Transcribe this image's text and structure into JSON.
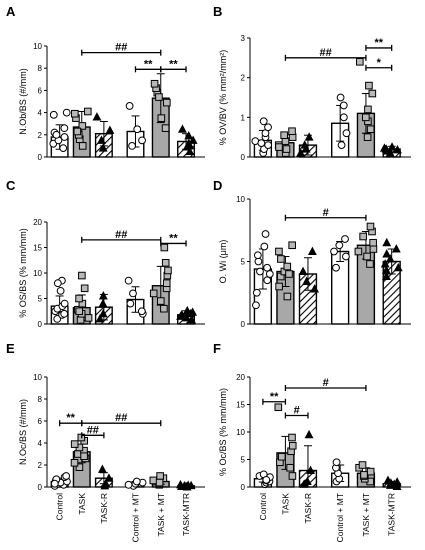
{
  "chart_data": [
    {
      "panel": "A",
      "type": "bar",
      "ylabel": "N.Ob/BS (#/mm)",
      "ylim": [
        0,
        10
      ],
      "yticks": [
        0,
        2,
        4,
        6,
        8,
        10
      ],
      "categories": [
        "Control",
        "TASK",
        "TASK-R",
        "Control + MT",
        "TASK + MT",
        "TASK-MTR"
      ],
      "values": [
        1.8,
        2.7,
        2.1,
        2.3,
        5.3,
        1.4
      ],
      "errors": [
        1.1,
        1.4,
        1.1,
        1.4,
        2.2,
        0.7
      ],
      "points": [
        [
          0.8,
          1.2,
          1.5,
          1.8,
          2.2,
          2.6,
          3.8,
          4.0,
          2.0
        ],
        [
          1.0,
          1.6,
          2.0,
          2.8,
          3.5,
          3.9,
          4.1,
          2.3
        ],
        [
          0.8,
          1.5,
          2.4,
          3.6
        ],
        [
          1.0,
          1.5,
          2.5,
          4.6
        ],
        [
          2.6,
          3.5,
          4.9,
          5.8,
          6.2,
          6.6,
          5.4
        ],
        [
          0.5,
          0.9,
          1.2,
          1.5,
          1.9,
          2.5,
          1.0
        ]
      ],
      "significance": [
        {
          "from": 1,
          "to": 4,
          "y": 9.4,
          "label": "##"
        },
        {
          "from": 3,
          "to": 4,
          "y": 7.9,
          "label": "**"
        },
        {
          "from": 4,
          "to": 5,
          "y": 7.9,
          "label": "**"
        }
      ]
    },
    {
      "panel": "B",
      "type": "bar",
      "ylabel": "% OV/BV (% mm²/mm²)",
      "ylim": [
        0,
        3
      ],
      "yticks": [
        0,
        1,
        2,
        3
      ],
      "categories": [
        "Control",
        "TASK",
        "TASK-R",
        "Control + MT",
        "TASK + MT",
        "TASK-MTR"
      ],
      "values": [
        0.42,
        0.36,
        0.3,
        0.85,
        1.1,
        0.2
      ],
      "errors": [
        0.25,
        0.2,
        0.25,
        0.45,
        0.5,
        0.07
      ],
      "points": [
        [
          0.1,
          0.2,
          0.3,
          0.4,
          0.5,
          0.6,
          0.75,
          0.9,
          0.35
        ],
        [
          0.1,
          0.2,
          0.3,
          0.4,
          0.5,
          0.55,
          0.65,
          0.25
        ],
        [
          0.1,
          0.2,
          0.3,
          0.5
        ],
        [
          0.3,
          0.6,
          1.0,
          1.3,
          1.5
        ],
        [
          0.5,
          0.7,
          0.9,
          1.2,
          1.6,
          1.8,
          2.4,
          1.0
        ],
        [
          0.1,
          0.15,
          0.2,
          0.22,
          0.25,
          0.18
        ]
      ],
      "significance": [
        {
          "from": 1,
          "to": 4,
          "y": 2.5,
          "label": "##"
        },
        {
          "from": 4,
          "to": 5,
          "y": 2.75,
          "label": "**"
        },
        {
          "from": 4,
          "to": 5,
          "y": 2.25,
          "label": "*"
        }
      ]
    },
    {
      "panel": "C",
      "type": "bar",
      "ylabel": "% OS/BS (% mm/mm)",
      "ylim": [
        0,
        20
      ],
      "yticks": [
        0,
        5,
        10,
        15,
        20
      ],
      "categories": [
        "Control",
        "TASK",
        "TASK-R",
        "Control + MT",
        "TASK + MT",
        "TASK-MTR"
      ],
      "values": [
        3.5,
        3.2,
        3.3,
        4.8,
        7.5,
        1.8
      ],
      "errors": [
        2.0,
        2.5,
        2.5,
        2.5,
        3.8,
        0.8
      ],
      "points": [
        [
          1.0,
          1.8,
          2.5,
          3.0,
          3.5,
          4.0,
          6.5,
          8.5,
          8.0,
          2.0
        ],
        [
          0.8,
          1.2,
          2.0,
          2.8,
          4.0,
          5.0,
          7.0,
          9.5,
          2.5
        ],
        [
          1.0,
          2.0,
          4.0,
          5.5
        ],
        [
          2.0,
          2.5,
          4.0,
          6.0,
          8.5
        ],
        [
          3.0,
          4.5,
          6.0,
          7.0,
          8.0,
          9.5,
          10.5,
          12.0,
          15.0
        ],
        [
          0.8,
          1.2,
          1.5,
          2.0,
          2.3,
          2.6,
          1.8
        ]
      ],
      "significance": [
        {
          "from": 1,
          "to": 4,
          "y": 16.5,
          "label": "##"
        },
        {
          "from": 4,
          "to": 5,
          "y": 15.8,
          "label": "**"
        }
      ]
    },
    {
      "panel": "D",
      "type": "bar",
      "ylabel": "O. Wi (μm)",
      "ylim": [
        0,
        10
      ],
      "yticks": [
        0,
        5,
        10
      ],
      "categories": [
        "Control",
        "TASK",
        "TASK-R",
        "Control + MT",
        "TASK + MT",
        "TASK-MTR"
      ],
      "values": [
        4.4,
        4.2,
        4.0,
        5.8,
        6.3,
        5.0
      ],
      "errors": [
        1.6,
        1.2,
        1.3,
        0.8,
        1.1,
        1.0
      ],
      "points": [
        [
          1.5,
          2.5,
          3.5,
          4.0,
          4.5,
          5.0,
          5.5,
          6.2,
          7.2,
          4.2
        ],
        [
          2.2,
          3.0,
          3.8,
          4.2,
          4.6,
          5.2,
          5.8,
          6.3,
          4.0
        ],
        [
          2.8,
          3.4,
          4.2,
          5.8
        ],
        [
          4.5,
          5.4,
          5.8,
          6.3,
          6.8
        ],
        [
          4.8,
          5.4,
          6.0,
          6.5,
          7.0,
          7.4,
          7.8,
          5.8
        ],
        [
          3.8,
          4.3,
          4.8,
          5.2,
          5.6,
          6.0,
          6.5,
          4.5
        ]
      ],
      "significance": [
        {
          "from": 1,
          "to": 4,
          "y": 8.5,
          "label": "#"
        }
      ]
    },
    {
      "panel": "E",
      "type": "bar",
      "ylabel": "N.Oc/BS (#/mm)",
      "ylim": [
        0,
        10
      ],
      "yticks": [
        0,
        2,
        4,
        6,
        8,
        10
      ],
      "categories": [
        "Control",
        "TASK",
        "TASK-R",
        "Control + MT",
        "TASK + MT",
        "TASK-MTR"
      ],
      "values": [
        0.5,
        3.2,
        0.8,
        0.3,
        0.5,
        0.1
      ],
      "errors": [
        0.3,
        1.0,
        0.5,
        0.2,
        0.25,
        0.08
      ],
      "points": [
        [
          0.1,
          0.2,
          0.3,
          0.4,
          0.5,
          0.6,
          0.7,
          0.9,
          1.0,
          0.3
        ],
        [
          1.8,
          2.2,
          2.6,
          3.0,
          3.3,
          3.6,
          3.9,
          4.2,
          4.5,
          2.8
        ],
        [
          0.1,
          0.3,
          0.8,
          1.6
        ],
        [
          0.1,
          0.2,
          0.3,
          0.4,
          0.5
        ],
        [
          0.2,
          0.3,
          0.5,
          0.6,
          0.8,
          1.0,
          0.4
        ],
        [
          0.0,
          0.05,
          0.1,
          0.12,
          0.15,
          0.2,
          0.05
        ]
      ],
      "significance": [
        {
          "from": 0,
          "to": 1,
          "y": 5.8,
          "label": "**"
        },
        {
          "from": 1,
          "to": 4,
          "y": 5.8,
          "label": "##"
        },
        {
          "from": 1,
          "to": 2,
          "y": 4.7,
          "label": "##"
        }
      ]
    },
    {
      "panel": "F",
      "type": "bar",
      "ylabel": "% Oc/BS (% mm/mm)",
      "ylim": [
        0,
        20
      ],
      "yticks": [
        0,
        5,
        10,
        15,
        20
      ],
      "categories": [
        "Control",
        "TASK",
        "TASK-R",
        "Control + MT",
        "TASK + MT",
        "TASK-MTR"
      ],
      "values": [
        1.5,
        6.2,
        3.0,
        2.5,
        2.5,
        0.6
      ],
      "errors": [
        0.6,
        3.0,
        4.5,
        1.5,
        1.0,
        0.4
      ],
      "points": [
        [
          0.5,
          0.8,
          1.0,
          1.2,
          1.5,
          1.8,
          2.0,
          2.3,
          1.3
        ],
        [
          2.0,
          3.5,
          4.5,
          5.5,
          6.5,
          7.5,
          9.0,
          14.5
        ],
        [
          0.5,
          1.0,
          3.0,
          9.5
        ],
        [
          1.0,
          1.5,
          2.5,
          3.5,
          4.5
        ],
        [
          1.0,
          1.5,
          2.0,
          2.8,
          3.5,
          4.0,
          2.2
        ],
        [
          0.1,
          0.3,
          0.5,
          0.7,
          0.9,
          1.2,
          0.4
        ]
      ],
      "significance": [
        {
          "from": 0,
          "to": 1,
          "y": 15.5,
          "label": "**"
        },
        {
          "from": 1,
          "to": 4,
          "y": 18.0,
          "label": "#"
        },
        {
          "from": 1,
          "to": 2,
          "y": 13.0,
          "label": "#"
        }
      ]
    }
  ],
  "x_category_labels": [
    "Control",
    "TASK",
    "TASK-R",
    "Control + MT",
    "TASK + MT",
    "TASK-MTR"
  ],
  "styles": {
    "open_fill": "#ffffff",
    "gray_fill": "#a8a8a8",
    "hatch_color": "#000000",
    "stroke": "#000000"
  }
}
